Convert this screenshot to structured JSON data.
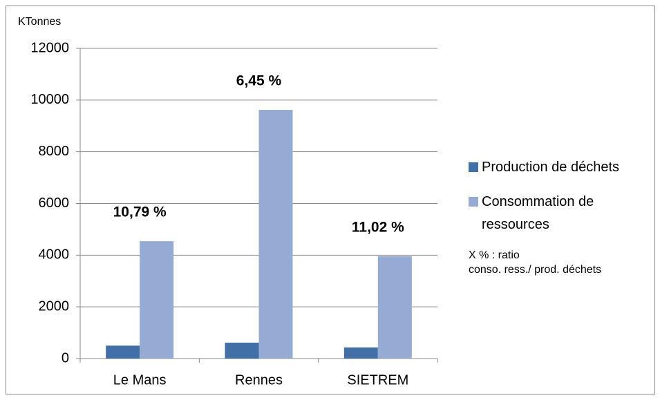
{
  "chart_data": {
    "type": "bar",
    "y_axis_label": "KTonnes",
    "categories": [
      "Le Mans",
      "Rennes",
      "SIETREM"
    ],
    "series": [
      {
        "name": "Production de déchets",
        "color": "#4270a6",
        "values": [
          500,
          615,
          430
        ]
      },
      {
        "name": "Consommation de ressources",
        "color": "#95abd3",
        "values": [
          4540,
          9620,
          3960
        ]
      }
    ],
    "annotations": [
      "10,79 %",
      "6,45 %",
      "11,02 %"
    ],
    "note": [
      "X % : ratio",
      "conso. ress./ prod. déchets"
    ],
    "ylim": [
      0,
      12000
    ],
    "yticks": [
      0,
      2000,
      4000,
      6000,
      8000,
      10000,
      12000
    ],
    "grid": true,
    "legend": "right"
  }
}
